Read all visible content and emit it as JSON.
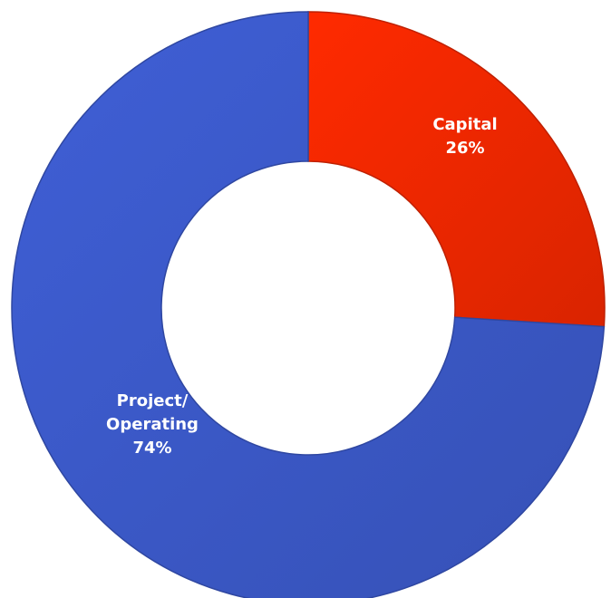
{
  "chart_data": {
    "type": "pie",
    "style": "donut",
    "series": [
      {
        "slices": [
          {
            "label_lines": [
              "Capital"
            ],
            "value": 26,
            "value_label": "26%",
            "color": "#ff2a00"
          },
          {
            "label_lines": [
              "Project/",
              "Operating"
            ],
            "value": 74,
            "value_label": "74%",
            "color": "#3f5fd6"
          }
        ]
      }
    ],
    "start_angle_deg": 0,
    "direction": "clockwise",
    "legend": "none"
  }
}
